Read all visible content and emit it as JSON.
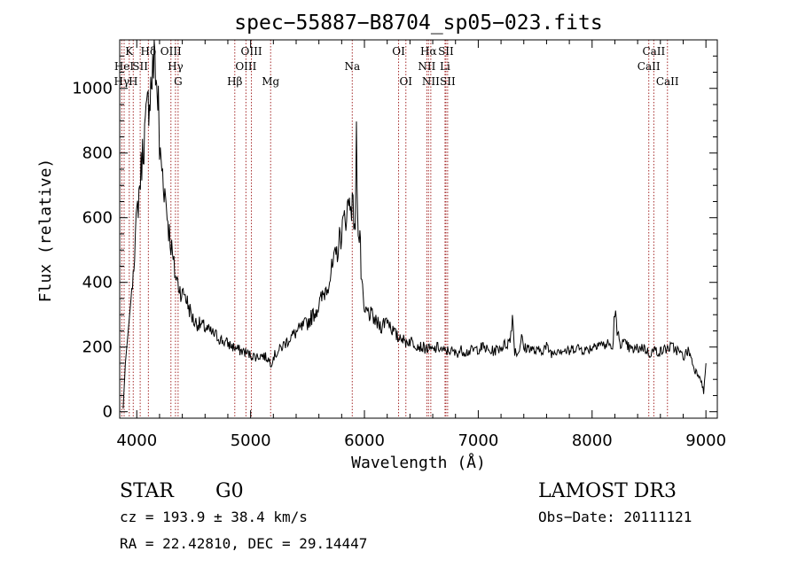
{
  "chart_data": {
    "type": "line",
    "title": "spec−55887−B8704_sp05−023.fits",
    "xlabel": "Wavelength (Å)",
    "ylabel": "Flux (relative)",
    "xlim": [
      3850,
      9100
    ],
    "ylim": [
      -20,
      1150
    ],
    "xticks": [
      4000,
      5000,
      6000,
      7000,
      8000,
      9000
    ],
    "yticks": [
      0,
      200,
      400,
      600,
      800,
      1000
    ],
    "grid": false,
    "series": [
      {
        "name": "flux",
        "x": [
          3880,
          3900,
          3950,
          4000,
          4050,
          4100,
          4140,
          4160,
          4175,
          4190,
          4200,
          4220,
          4240,
          4260,
          4280,
          4300,
          4320,
          4340,
          4360,
          4380,
          4400,
          4420,
          4450,
          4480,
          4500,
          4550,
          4600,
          4650,
          4700,
          4750,
          4800,
          4850,
          4900,
          4950,
          5000,
          5050,
          5100,
          5150,
          5180,
          5200,
          5250,
          5300,
          5350,
          5400,
          5450,
          5500,
          5550,
          5600,
          5650,
          5700,
          5750,
          5800,
          5830,
          5850,
          5880,
          5900,
          5920,
          5930,
          5940,
          5950,
          5960,
          5970,
          5990,
          6000,
          6020,
          6050,
          6080,
          6100,
          6150,
          6200,
          6250,
          6300,
          6320,
          6350,
          6400,
          6450,
          6500,
          6550,
          6600,
          6650,
          6700,
          6750,
          6800,
          6850,
          6900,
          6950,
          7000,
          7050,
          7100,
          7150,
          7200,
          7250,
          7280,
          7300,
          7320,
          7350,
          7380,
          7400,
          7450,
          7500,
          7550,
          7600,
          7650,
          7700,
          7750,
          7800,
          7850,
          7900,
          7950,
          8000,
          8050,
          8100,
          8150,
          8180,
          8200,
          8220,
          8250,
          8300,
          8350,
          8400,
          8450,
          8500,
          8550,
          8600,
          8650,
          8700,
          8750,
          8800,
          8850,
          8900,
          8950,
          8980,
          9000
        ],
        "values": [
          10,
          150,
          350,
          600,
          800,
          950,
          1050,
          1100,
          1000,
          950,
          800,
          760,
          700,
          640,
          570,
          520,
          460,
          420,
          400,
          380,
          360,
          370,
          330,
          300,
          280,
          270,
          260,
          245,
          235,
          220,
          210,
          200,
          190,
          185,
          175,
          170,
          175,
          165,
          150,
          170,
          190,
          210,
          230,
          245,
          260,
          275,
          300,
          330,
          370,
          420,
          480,
          560,
          600,
          630,
          660,
          620,
          580,
          840,
          650,
          520,
          560,
          430,
          330,
          300,
          310,
          300,
          290,
          275,
          265,
          290,
          250,
          225,
          240,
          215,
          220,
          210,
          200,
          195,
          190,
          200,
          185,
          190,
          180,
          190,
          185,
          190,
          195,
          200,
          185,
          190,
          200,
          210,
          220,
          300,
          190,
          180,
          230,
          195,
          200,
          185,
          190,
          200,
          180,
          195,
          190,
          185,
          200,
          195,
          190,
          200,
          215,
          205,
          210,
          190,
          320,
          240,
          215,
          205,
          190,
          195,
          200,
          180,
          190,
          185,
          195,
          200,
          190,
          170,
          190,
          130,
          110,
          60,
          150
        ]
      }
    ],
    "lines": [
      {
        "label": "Hγ",
        "x": 3868,
        "row": 3
      },
      {
        "label": "HeI",
        "x": 3889,
        "row": 2
      },
      {
        "label": "K",
        "x": 3934,
        "row": 1
      },
      {
        "label": "H",
        "x": 3969,
        "row": 3
      },
      {
        "label": "SII",
        "x": 4030,
        "row": 2
      },
      {
        "label": "Hδ",
        "x": 4102,
        "row": 1
      },
      {
        "label": "OIII",
        "x": 4300,
        "row": 1
      },
      {
        "label": "Hγ",
        "x": 4340,
        "row": 2
      },
      {
        "label": "G",
        "x": 4363,
        "row": 3
      },
      {
        "label": "Hβ",
        "x": 4861,
        "row": 3
      },
      {
        "label": "OIII",
        "x": 4959,
        "row": 2
      },
      {
        "label": "OIII",
        "x": 5007,
        "row": 1
      },
      {
        "label": "Mg",
        "x": 5176,
        "row": 3
      },
      {
        "label": "Na",
        "x": 5893,
        "row": 2
      },
      {
        "label": "OI",
        "x": 6300,
        "row": 1
      },
      {
        "label": "OI",
        "x": 6364,
        "row": 3
      },
      {
        "label": "NII",
        "x": 6548,
        "row": 2
      },
      {
        "label": "Hα",
        "x": 6563,
        "row": 1
      },
      {
        "label": "NII",
        "x": 6583,
        "row": 3
      },
      {
        "label": "Li",
        "x": 6708,
        "row": 2
      },
      {
        "label": "SII",
        "x": 6716,
        "row": 1
      },
      {
        "label": "SII",
        "x": 6731,
        "row": 3
      },
      {
        "label": "CaII",
        "x": 8498,
        "row": 2
      },
      {
        "label": "CaII",
        "x": 8542,
        "row": 1
      },
      {
        "label": "CaII",
        "x": 8662,
        "row": 3
      }
    ]
  },
  "info": {
    "class": "STAR",
    "subclass": "G0",
    "survey": "LAMOST DR3",
    "cz": "cz = 193.9 ± 38.4 km/s",
    "obs_date": "Obs−Date: 20111121",
    "coords": "RA =  22.42810, DEC =  29.14447"
  },
  "colors": {
    "line_marker": "#a52a2a",
    "spectrum": "#000000",
    "axis": "#000000"
  }
}
